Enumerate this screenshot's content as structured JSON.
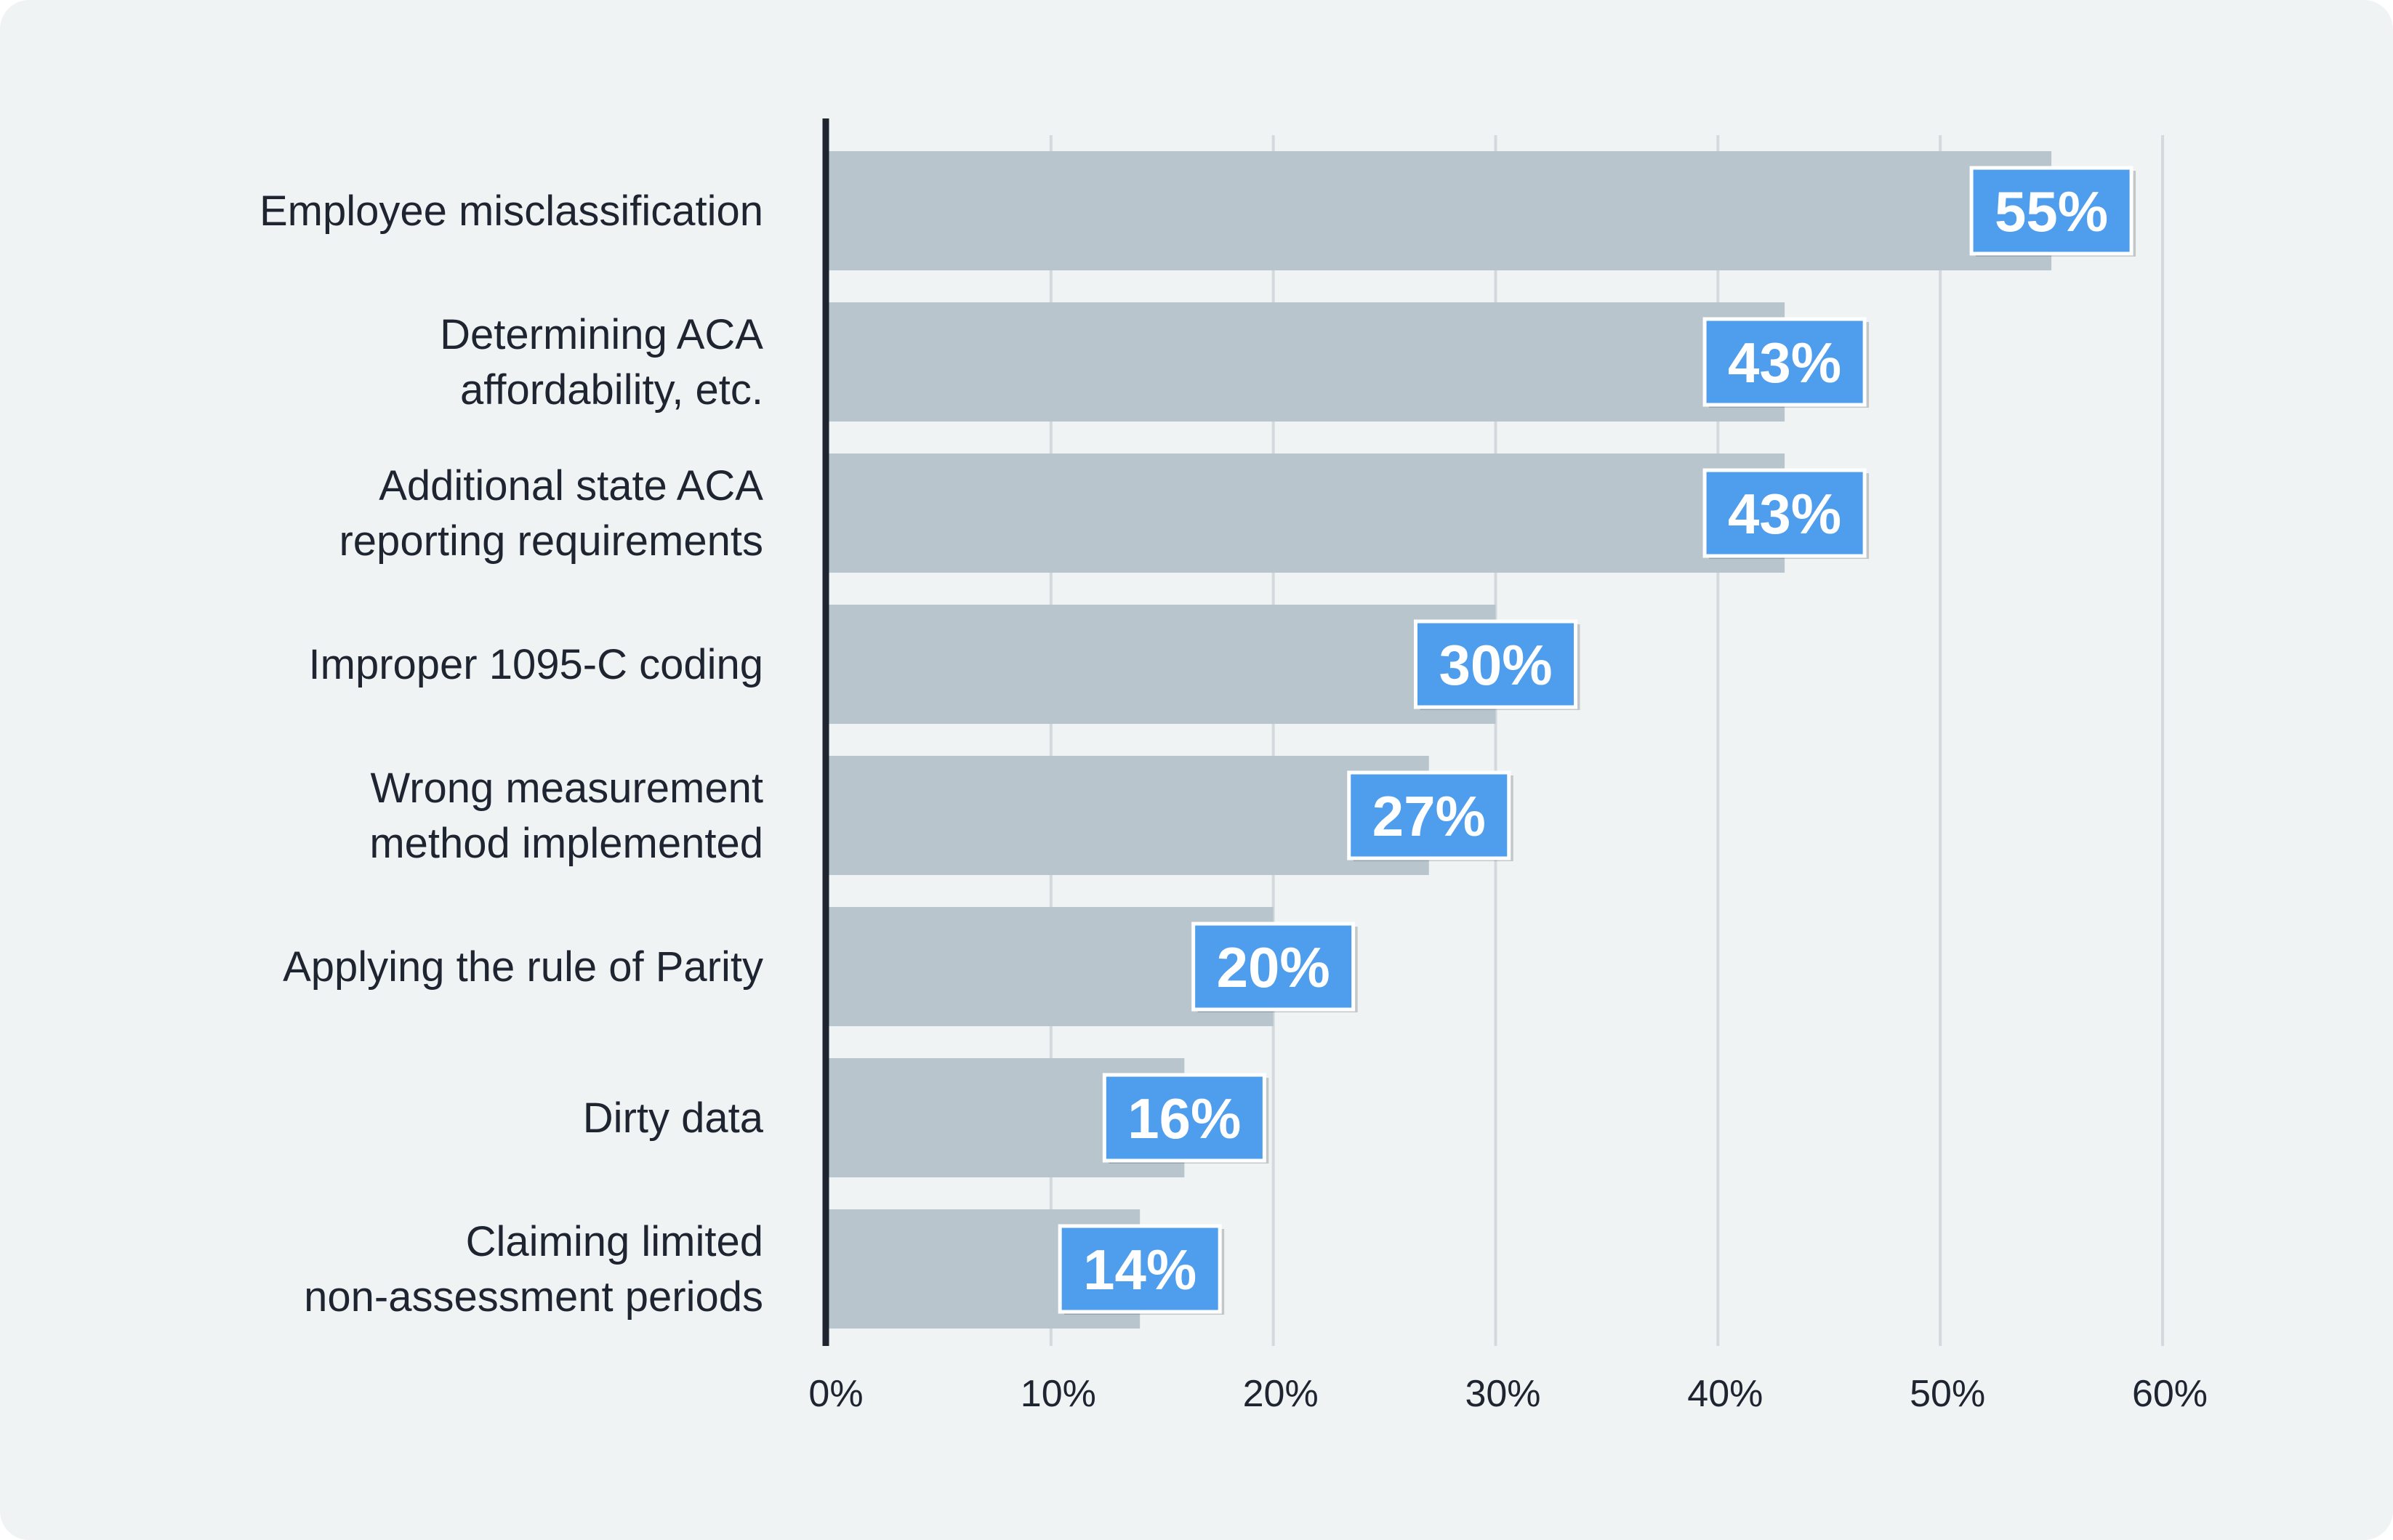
{
  "colors": {
    "background": "#f0f3f4",
    "bar": "#b8c5cc",
    "label_box": "#4f9ded",
    "label_box_border": "#ffffff",
    "axis": "#1e2430",
    "grid": "#d3d9dd",
    "text": "#1e2430"
  },
  "chart_data": {
    "type": "bar",
    "orientation": "horizontal",
    "title": "",
    "xlabel": "",
    "ylabel": "",
    "xlim": [
      0,
      60
    ],
    "x_ticks": [
      0,
      10,
      20,
      30,
      40,
      50,
      60
    ],
    "x_tick_labels": [
      "0%",
      "10%",
      "20%",
      "30%",
      "40%",
      "50%",
      "60%"
    ],
    "grid": true,
    "categories": [
      [
        "Employee misclassification"
      ],
      [
        "Determining ACA",
        "affordability, etc."
      ],
      [
        "Additional state ACA",
        "reporting requirements"
      ],
      [
        "Improper 1095-C coding"
      ],
      [
        "Wrong measurement",
        "method implemented"
      ],
      [
        "Applying the rule of Parity"
      ],
      [
        "Dirty data"
      ],
      [
        "Claiming limited",
        "non-assessment periods"
      ]
    ],
    "values": [
      55,
      43,
      43,
      30,
      27,
      20,
      16,
      14
    ],
    "value_labels": [
      "55%",
      "43%",
      "43%",
      "30%",
      "27%",
      "20%",
      "16%",
      "14%"
    ]
  }
}
